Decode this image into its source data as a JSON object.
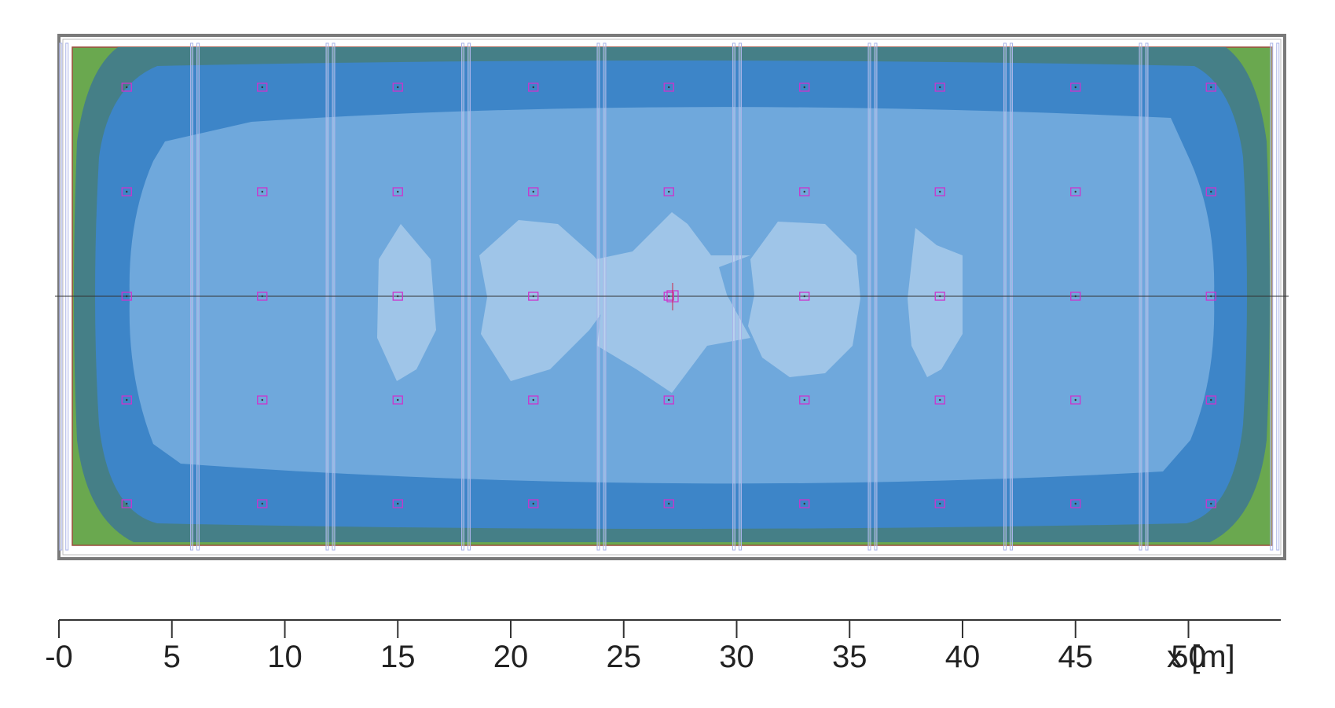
{
  "colors": {
    "zone_edge": "#6aa84f",
    "zone_outer": "#457f87",
    "zone_mid": "#3d85c8",
    "zone_inner": "#6fa8dc",
    "zone_peak": "#9fc5e8",
    "luminaire": "#cc33cc",
    "truss": "#a9b3e8",
    "frame": "#777777"
  },
  "axis": {
    "unit_label": "x [m]",
    "ticks": [
      {
        "value": 0,
        "label": "-0"
      },
      {
        "value": 5,
        "label": "5"
      },
      {
        "value": 10,
        "label": "10"
      },
      {
        "value": 15,
        "label": "15"
      },
      {
        "value": 20,
        "label": "20"
      },
      {
        "value": 25,
        "label": "25"
      },
      {
        "value": 30,
        "label": "30"
      },
      {
        "value": 35,
        "label": "35"
      },
      {
        "value": 40,
        "label": "40"
      },
      {
        "value": 45,
        "label": "45"
      },
      {
        "value": 50,
        "label": "50"
      }
    ],
    "range": [
      0,
      54
    ]
  },
  "luminaires": {
    "columns_m": [
      3,
      9,
      15,
      21,
      27,
      33,
      39,
      45,
      51
    ],
    "rows": 5
  },
  "trusses_m": [
    0.2,
    6,
    12,
    18,
    24,
    30,
    36,
    42,
    48,
    53.8
  ]
}
